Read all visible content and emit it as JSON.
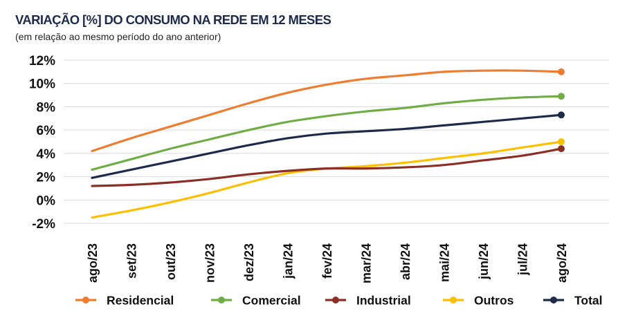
{
  "header": {
    "title": "VARIAÇÃO [%] DO CONSUMO NA REDE EM 12 MESES",
    "subtitle": "(em relação ao mesmo período do ano anterior)"
  },
  "chart_data": {
    "type": "line",
    "title": "VARIAÇÃO [%] DO CONSUMO NA REDE EM 12 MESES",
    "subtitle": "(em relação ao mesmo período do ano anterior)",
    "xlabel": "",
    "ylabel": "",
    "categories": [
      "ago/23",
      "set/23",
      "out/23",
      "nov/23",
      "dez/23",
      "jan/24",
      "fev/24",
      "mar/24",
      "abr/24",
      "mai/24",
      "jun/24",
      "jul/24",
      "ago/24"
    ],
    "ylim": [
      -2,
      12
    ],
    "yticks": [
      -2,
      0,
      2,
      4,
      6,
      8,
      10,
      12
    ],
    "ytick_labels": [
      "-2%",
      "0%",
      "2%",
      "4%",
      "6%",
      "8%",
      "10%",
      "12%"
    ],
    "grid": true,
    "legend_position": "bottom",
    "series": [
      {
        "name": "Residencial",
        "color": "#ee7d31",
        "values": [
          4.2,
          5.3,
          6.3,
          7.3,
          8.3,
          9.2,
          9.9,
          10.4,
          10.7,
          11.0,
          11.1,
          11.1,
          11.0
        ]
      },
      {
        "name": "Comercial",
        "color": "#70ad47",
        "values": [
          2.6,
          3.5,
          4.4,
          5.2,
          6.0,
          6.7,
          7.2,
          7.6,
          7.9,
          8.3,
          8.6,
          8.8,
          8.9
        ]
      },
      {
        "name": "Industrial",
        "color": "#8b2e25",
        "values": [
          1.2,
          1.3,
          1.5,
          1.8,
          2.2,
          2.5,
          2.7,
          2.7,
          2.8,
          3.0,
          3.4,
          3.8,
          4.4
        ]
      },
      {
        "name": "Outros",
        "color": "#fcc000",
        "values": [
          -1.5,
          -0.9,
          -0.2,
          0.6,
          1.5,
          2.3,
          2.7,
          2.9,
          3.2,
          3.6,
          4.0,
          4.5,
          5.0
        ]
      },
      {
        "name": "Total",
        "color": "#1e2a4a",
        "values": [
          1.9,
          2.6,
          3.3,
          4.0,
          4.7,
          5.3,
          5.7,
          5.9,
          6.1,
          6.4,
          6.7,
          7.0,
          7.3
        ]
      }
    ]
  }
}
